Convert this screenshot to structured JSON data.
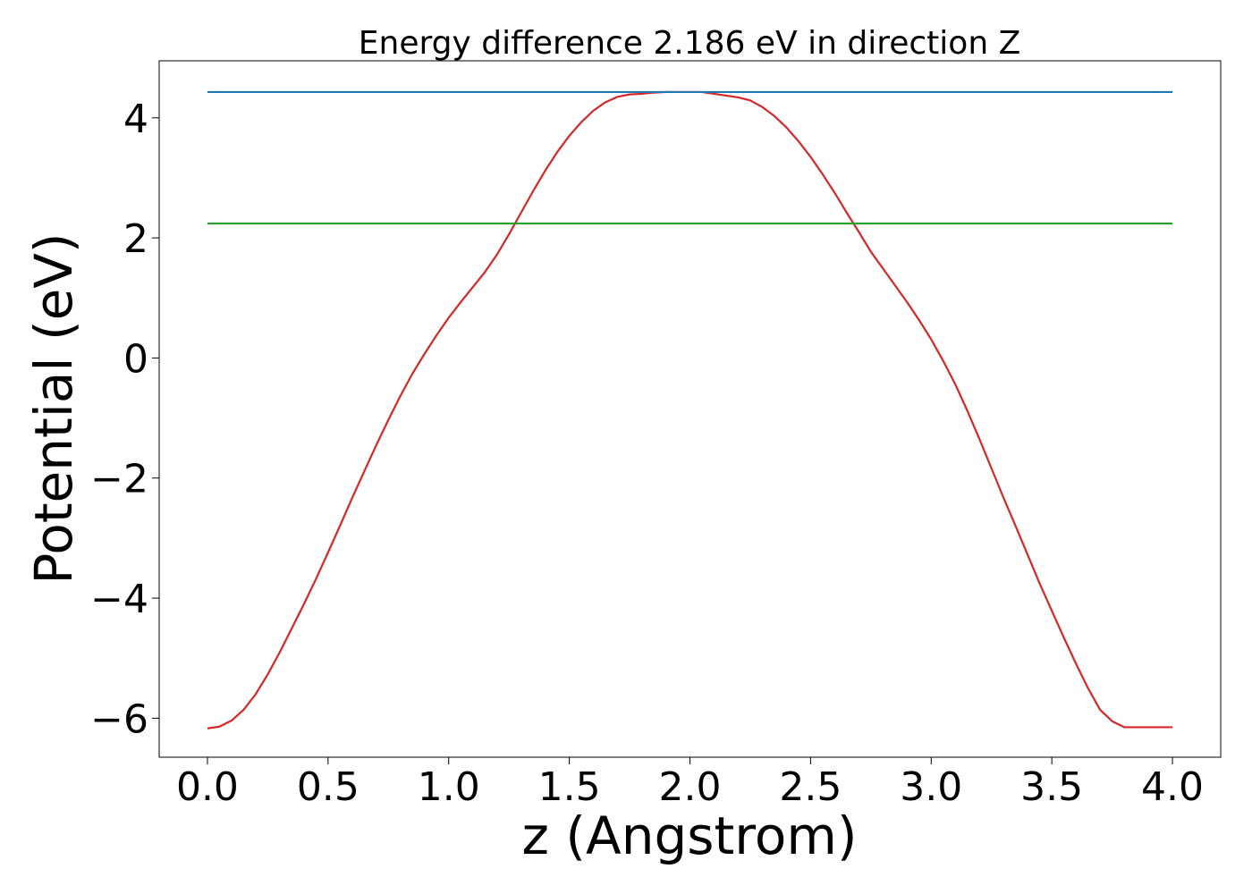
{
  "chart_data": {
    "type": "line",
    "title": "Energy difference 2.186 eV in direction Z",
    "xlabel": "z (Angstrom)",
    "ylabel": "Potential (eV)",
    "xlim": [
      -0.2,
      4.2
    ],
    "ylim": [
      -6.65,
      4.95
    ],
    "x_ticks": [
      0.0,
      0.5,
      1.0,
      1.5,
      2.0,
      2.5,
      3.0,
      3.5,
      4.0
    ],
    "x_tick_labels": [
      "0.0",
      "0.5",
      "1.0",
      "1.5",
      "2.0",
      "2.5",
      "3.0",
      "3.5",
      "4.0"
    ],
    "y_ticks": [
      -6,
      -4,
      -2,
      0,
      2,
      4
    ],
    "y_tick_labels": [
      "−6",
      "−4",
      "−2",
      "0",
      "2",
      "4"
    ],
    "grid": false,
    "series": [
      {
        "color": "#d62728",
        "x": [
          0.0,
          0.05,
          0.1,
          0.15,
          0.2,
          0.25,
          0.3,
          0.35,
          0.4,
          0.45,
          0.5,
          0.55,
          0.6,
          0.65,
          0.7,
          0.75,
          0.8,
          0.85,
          0.9,
          0.95,
          1.0,
          1.05,
          1.1,
          1.15,
          1.2,
          1.25,
          1.3,
          1.35,
          1.4,
          1.45,
          1.5,
          1.55,
          1.6,
          1.65,
          1.7,
          1.75,
          1.8,
          1.85,
          1.9,
          1.95,
          2.0,
          2.02,
          2.05,
          2.1,
          2.15,
          2.2,
          2.25,
          2.3,
          2.35,
          2.4,
          2.45,
          2.5,
          2.55,
          2.6,
          2.65,
          2.7,
          2.75,
          2.8,
          2.85,
          2.9,
          2.95,
          3.0,
          3.05,
          3.1,
          3.15,
          3.2,
          3.25,
          3.3,
          3.35,
          3.4,
          3.45,
          3.5,
          3.55,
          3.6,
          3.65,
          3.7,
          3.75,
          3.8,
          3.85,
          3.9,
          3.95,
          4.0
        ],
        "y": [
          -6.17,
          -6.14,
          -6.04,
          -5.86,
          -5.6,
          -5.27,
          -4.9,
          -4.5,
          -4.1,
          -3.68,
          -3.24,
          -2.79,
          -2.33,
          -1.89,
          -1.45,
          -1.03,
          -0.63,
          -0.26,
          0.07,
          0.38,
          0.67,
          0.93,
          1.18,
          1.43,
          1.72,
          2.06,
          2.42,
          2.78,
          3.12,
          3.43,
          3.7,
          3.93,
          4.12,
          4.26,
          4.35,
          4.39,
          4.4,
          4.42,
          4.43,
          4.43,
          4.43,
          4.43,
          4.43,
          4.4,
          4.37,
          4.34,
          4.29,
          4.18,
          4.03,
          3.84,
          3.61,
          3.35,
          3.06,
          2.75,
          2.42,
          2.1,
          1.77,
          1.49,
          1.21,
          0.93,
          0.63,
          0.31,
          -0.05,
          -0.44,
          -0.88,
          -1.35,
          -1.84,
          -2.33,
          -2.8,
          -3.28,
          -3.76,
          -4.21,
          -4.66,
          -5.09,
          -5.5,
          -5.86,
          -6.05,
          -6.15,
          -6.15,
          -6.15,
          -6.15,
          -6.15
        ]
      },
      {
        "color": "#1f77b4",
        "x": [
          0.0,
          4.0
        ],
        "y": [
          4.43,
          4.43
        ]
      },
      {
        "color": "#2ca02c",
        "x": [
          0.0,
          4.0
        ],
        "y": [
          2.24,
          2.24
        ]
      }
    ]
  }
}
